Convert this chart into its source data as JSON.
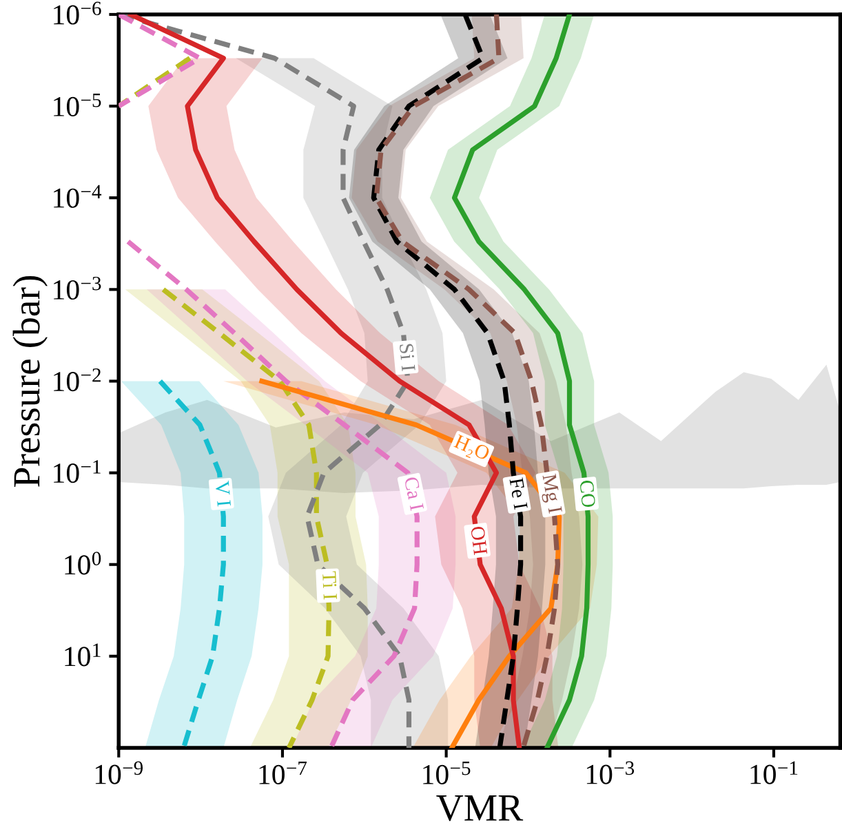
{
  "chart_data": {
    "type": "line",
    "orientation": "horizontal",
    "log": "xy",
    "grid": false,
    "xlabel": "VMR",
    "ylabel": "Pressure (bar)",
    "xlim": [
      1e-09,
      0.65
    ],
    "ylim": [
      100,
      1e-06
    ],
    "xticks": [
      {
        "value": 1e-09,
        "label": "10$^{−9}$"
      },
      {
        "value": 1e-07,
        "label": "10$^{−7}$"
      },
      {
        "value": 1e-05,
        "label": "10$^{−5}$"
      },
      {
        "value": 0.001,
        "label": "10$^{−3}$"
      },
      {
        "value": 0.1,
        "label": "10$^{−1}$"
      }
    ],
    "yticks": [
      {
        "value": 1e-06,
        "label": "10$^{−6}$"
      },
      {
        "value": 1e-05,
        "label": "10$^{−5}$"
      },
      {
        "value": 0.0001,
        "label": "10$^{−4}$"
      },
      {
        "value": 0.001,
        "label": "10$^{−3}$"
      },
      {
        "value": 0.01,
        "label": "10$^{−2}$"
      },
      {
        "value": 0.1,
        "label": "10$^{−1}$"
      },
      {
        "value": 1,
        "label": "10$^{0}$"
      },
      {
        "value": 10,
        "label": "10$^{1}$"
      }
    ],
    "x": [
      1e-06,
      3e-06,
      1e-05,
      3e-05,
      0.0001,
      0.0003,
      0.001,
      0.003,
      0.01,
      0.03,
      0.1,
      0.3,
      1,
      3,
      10,
      30,
      100
    ],
    "series": [
      {
        "name": "V I",
        "color": "#17becf",
        "line_style": "dashed",
        "values": [
          null,
          null,
          null,
          null,
          null,
          null,
          null,
          null,
          3.2e-09,
          9.8e-09,
          1.7e-08,
          1.9e-08,
          1.9e-08,
          1.7e-08,
          1.4e-08,
          9.4e-09,
          6.2e-09
        ],
        "lower": [
          null,
          null,
          null,
          null,
          null,
          null,
          null,
          null,
          1.07e-09,
          3.3e-09,
          5.7e-09,
          6.3e-09,
          6.3e-09,
          5.7e-09,
          4.7e-09,
          3.1e-09,
          2.1e-09
        ],
        "upper": [
          null,
          null,
          null,
          null,
          null,
          null,
          null,
          null,
          9.6e-09,
          2.9e-08,
          5.1e-08,
          5.7e-08,
          5.7e-08,
          5.1e-08,
          4.2e-08,
          2.8e-08,
          1.9e-08
        ]
      },
      {
        "name": "Ti I",
        "color": "#bcbd22",
        "line_style": "dashed",
        "values": [
          null,
          7.4e-09,
          1e-09,
          null,
          null,
          null,
          3.5e-09,
          1.7e-08,
          9.3e-08,
          2.1e-07,
          2.6e-07,
          2.6e-07,
          3.5e-07,
          3.7e-07,
          3.6e-07,
          2.3e-07,
          1.2e-07
        ],
        "lower": [
          null,
          null,
          null,
          null,
          null,
          null,
          1.2e-09,
          5.7e-09,
          3.1e-08,
          7e-08,
          8.7e-08,
          8.7e-08,
          1.2e-07,
          1.2e-07,
          1.2e-07,
          7.7e-08,
          4e-08
        ],
        "upper": [
          null,
          null,
          null,
          null,
          null,
          null,
          1.05e-08,
          5.1e-08,
          2.8e-07,
          6.3e-07,
          7.8e-07,
          7.8e-07,
          1.05e-06,
          1.1e-06,
          1.1e-06,
          6.9e-07,
          3.6e-07
        ]
      },
      {
        "name": "Si I",
        "color": "#7f7f7f",
        "line_style": "dashed",
        "values": [
          1e-09,
          8e-08,
          7.4e-07,
          5.5e-07,
          5.5e-07,
          9.8e-07,
          1.9e-06,
          3e-06,
          3.4e-06,
          1.55e-06,
          3.2e-07,
          2e-07,
          2.7e-07,
          1e-06,
          2.7e-06,
          3.5e-06,
          3.5e-06
        ],
        "lower": [
          null,
          2.7e-08,
          2.5e-07,
          1.8e-07,
          1.8e-07,
          3.3e-07,
          6.3e-07,
          1e-06,
          1.1e-06,
          5.2e-07,
          1.1e-07,
          6.7e-08,
          9e-08,
          3.3e-07,
          9e-07,
          1.2e-06,
          1.2e-06
        ],
        "upper": [
          null,
          2.4e-07,
          2.2e-06,
          1.65e-06,
          1.65e-06,
          2.9e-06,
          5.7e-06,
          9e-06,
          1e-05,
          4.7e-06,
          9.6e-07,
          6e-07,
          8.1e-07,
          3e-06,
          8.1e-06,
          1.05e-05,
          1.05e-05
        ]
      },
      {
        "name": "Ca I",
        "color": "#e377c2",
        "line_style": "dashed",
        "values": [
          1e-09,
          9.8e-09,
          1e-09,
          null,
          null,
          1.3e-09,
          6.7e-09,
          2.6e-08,
          1.1e-07,
          5.7e-07,
          3.4e-06,
          4.4e-06,
          4.4e-06,
          4.1e-06,
          2.3e-06,
          7.2e-07,
          3.9e-07
        ],
        "lower": [
          null,
          null,
          null,
          null,
          null,
          null,
          2.2e-09,
          8.7e-09,
          3.7e-08,
          1.9e-07,
          1.1e-06,
          1.5e-06,
          1.5e-06,
          1.4e-06,
          7.7e-07,
          2.4e-07,
          1.3e-07
        ],
        "upper": [
          null,
          null,
          null,
          null,
          null,
          null,
          2e-08,
          7.8e-08,
          3.3e-07,
          1.7e-06,
          1e-05,
          1.3e-05,
          1.3e-05,
          1.2e-05,
          6.9e-06,
          2.2e-06,
          1.2e-06
        ]
      },
      {
        "name": "H₂O",
        "color": "#ff7f0e",
        "line_style": "solid",
        "values": [
          null,
          null,
          null,
          null,
          null,
          null,
          null,
          null,
          5.6e-08,
          4.3e-06,
          9.4e-05,
          0.00024,
          0.00023,
          0.00019,
          5.9e-05,
          2.5e-05,
          1.17e-05
        ],
        "lower": [
          null,
          null,
          null,
          null,
          null,
          null,
          null,
          null,
          1.9e-08,
          1.4e-06,
          3.1e-05,
          8e-05,
          7.7e-05,
          6.3e-05,
          2e-05,
          8.3e-06,
          3.9e-06
        ],
        "upper": [
          null,
          null,
          null,
          null,
          null,
          null,
          null,
          null,
          1.7e-07,
          1.3e-05,
          0.00028,
          0.00072,
          0.00069,
          0.00057,
          0.00018,
          7.5e-05,
          3.5e-05
        ]
      },
      {
        "name": "OH",
        "color": "#d62728",
        "line_style": "solid",
        "values": [
          1.4e-09,
          1.9e-08,
          6.9e-09,
          8.7e-09,
          1.6e-08,
          4.5e-08,
          1.5e-07,
          5.2e-07,
          2.7e-06,
          1.9e-05,
          4.1e-05,
          2.2e-05,
          2.6e-05,
          4.7e-05,
          6.6e-05,
          6.6e-05,
          7.8e-05
        ],
        "lower": [
          null,
          6.3e-09,
          2.3e-09,
          2.9e-09,
          5.3e-09,
          1.5e-08,
          5e-08,
          1.7e-07,
          9e-07,
          6.3e-06,
          1.37e-05,
          7.3e-06,
          8.7e-06,
          1.57e-05,
          2.2e-05,
          2.2e-05,
          2.6e-05
        ],
        "upper": [
          null,
          5.7e-08,
          2.07e-08,
          2.6e-08,
          4.8e-08,
          1.35e-07,
          4.5e-07,
          1.56e-06,
          8.1e-06,
          5.7e-05,
          0.000123,
          6.6e-05,
          7.8e-05,
          0.000141,
          0.000198,
          0.000198,
          0.000234
        ]
      },
      {
        "name": "Fe I",
        "color": "#000000",
        "line_style": "dashed",
        "values": [
          1.7e-05,
          2.8e-05,
          3.5e-06,
          1.5e-06,
          1.3e-06,
          2.5e-06,
          1.26e-05,
          3.2e-05,
          5.1e-05,
          5.9e-05,
          6.6e-05,
          8.1e-05,
          8.1e-05,
          7.4e-05,
          6.6e-05,
          5.5e-05,
          4.5e-05
        ],
        "lower": [
          8.5e-06,
          1.4e-05,
          1.75e-06,
          7.5e-07,
          6.5e-07,
          1.25e-06,
          6.3e-06,
          1.6e-05,
          2.55e-05,
          2.95e-05,
          3.3e-05,
          4.05e-05,
          4.05e-05,
          3.7e-05,
          3.3e-05,
          2.75e-05,
          2.25e-05
        ],
        "upper": [
          3.4e-05,
          5.6e-05,
          7e-06,
          3e-06,
          2.6e-06,
          5e-06,
          2.52e-05,
          6.4e-05,
          0.000102,
          0.000118,
          0.000132,
          0.000162,
          0.000162,
          0.000148,
          0.000132,
          0.00011,
          9e-05
        ]
      },
      {
        "name": "Mg I",
        "color": "#8c564b",
        "line_style": "dashed",
        "values": [
          4.1e-05,
          4.4e-05,
          4e-06,
          1.6e-06,
          1.4e-06,
          2.9e-06,
          1.9e-05,
          6.9e-05,
          0.00011,
          0.000145,
          0.00017,
          0.00021,
          0.00023,
          0.00021,
          0.00017,
          0.00013,
          8.7e-05
        ],
        "lower": [
          2.05e-05,
          2.2e-05,
          2e-06,
          8e-07,
          7e-07,
          1.45e-06,
          9.5e-06,
          3.45e-05,
          5.5e-05,
          7.25e-05,
          8.5e-05,
          0.000105,
          0.000115,
          0.000105,
          8.5e-05,
          6.5e-05,
          4.35e-05
        ],
        "upper": [
          8.2e-05,
          8.8e-05,
          8e-06,
          3.2e-06,
          2.8e-06,
          5.8e-06,
          3.8e-05,
          0.000138,
          0.00022,
          0.00029,
          0.00034,
          0.00042,
          0.00046,
          0.00042,
          0.00034,
          0.00026,
          0.000174
        ]
      },
      {
        "name": "CO",
        "color": "#2ca02c",
        "line_style": "solid",
        "values": [
          0.00032,
          0.00022,
          0.00012,
          2.1e-05,
          1.26e-05,
          2.5e-05,
          9e-05,
          0.00023,
          0.00032,
          0.00032,
          0.00048,
          0.00054,
          0.00054,
          0.00052,
          0.00045,
          0.00032,
          0.00017
        ],
        "lower": [
          0.00016,
          0.00011,
          6e-05,
          1.05e-05,
          6.3e-06,
          1.25e-05,
          4.5e-05,
          0.000115,
          0.00016,
          0.00016,
          0.00024,
          0.00027,
          0.00027,
          0.00026,
          0.000225,
          0.00016,
          8.5e-05
        ],
        "upper": [
          0.00064,
          0.00044,
          0.00024,
          4.2e-05,
          2.52e-05,
          5e-05,
          0.00018,
          0.00046,
          0.00064,
          0.00064,
          0.00096,
          0.00108,
          0.00108,
          0.00104,
          0.0009,
          0.00064,
          0.00034
        ]
      }
    ]
  }
}
